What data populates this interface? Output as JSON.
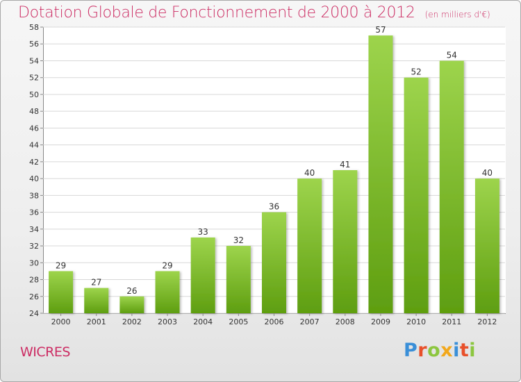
{
  "title": "Dotation Globale de Fonctionnement de 2000 à 2012",
  "unit_note": "(en milliers d'€)",
  "commune": "WICRES",
  "logo_text": "Proxiti",
  "colors": {
    "title": "#cc2c63",
    "bar_top": "#9dd44c",
    "bar_bottom": "#5e9e10"
  },
  "chart_data": {
    "type": "bar",
    "title": "Dotation Globale de Fonctionnement de 2000 à 2012",
    "categories": [
      "2000",
      "2001",
      "2002",
      "2003",
      "2004",
      "2005",
      "2006",
      "2007",
      "2008",
      "2009",
      "2010",
      "2011",
      "2012"
    ],
    "values": [
      29,
      27,
      26,
      29,
      33,
      32,
      36,
      40,
      41,
      57,
      52,
      54,
      40
    ],
    "xlabel": "",
    "ylabel": "",
    "ylim": [
      24,
      58
    ],
    "yticks": [
      24,
      26,
      28,
      30,
      32,
      34,
      36,
      38,
      40,
      42,
      44,
      46,
      48,
      50,
      52,
      54,
      56,
      58
    ],
    "grid": true,
    "legend": "none"
  }
}
